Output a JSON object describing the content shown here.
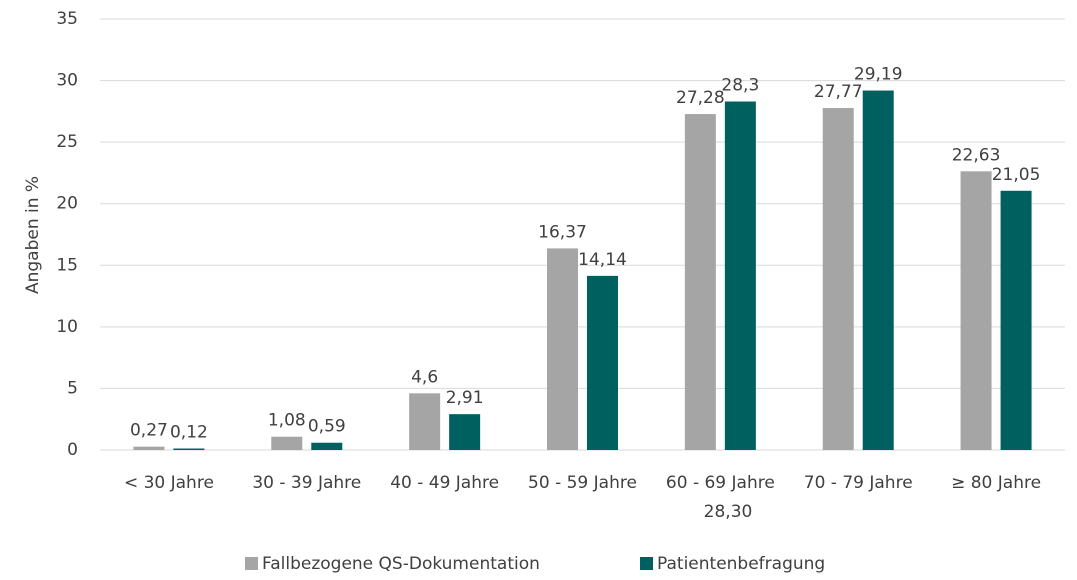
{
  "chart_data": {
    "type": "bar",
    "y_label": "Angaben in %",
    "categories": [
      "< 30 Jahre",
      "30 - 39 Jahre",
      "40 - 49 Jahre",
      "50 - 59 Jahre",
      "60 - 69 Jahre",
      "70 - 79 Jahre",
      "≥ 80 Jahre"
    ],
    "series": [
      {
        "name": "Fallbezogene QS-Dokumentation",
        "color": "#a5a5a5",
        "values": [
          0.27,
          1.08,
          4.6,
          16.37,
          27.28,
          27.77,
          22.63
        ],
        "value_labels": [
          "0,27",
          "1,08",
          "4,6",
          "16,37",
          "27,28",
          "27,77",
          "22,63"
        ]
      },
      {
        "name": "Patientenbefragung",
        "color": "#005f5f",
        "values": [
          0.12,
          0.59,
          2.91,
          14.14,
          28.3,
          29.19,
          21.05
        ],
        "value_labels": [
          "0,12",
          "0,59",
          "2,91",
          "14,14",
          "28,3",
          "29,19",
          "21,05"
        ]
      }
    ],
    "annotations": [
      "28,30"
    ],
    "ylim": [
      0,
      35
    ],
    "yticks": [
      0,
      5,
      10,
      15,
      20,
      25,
      30,
      35
    ],
    "grid": true,
    "legend": "bottom"
  }
}
